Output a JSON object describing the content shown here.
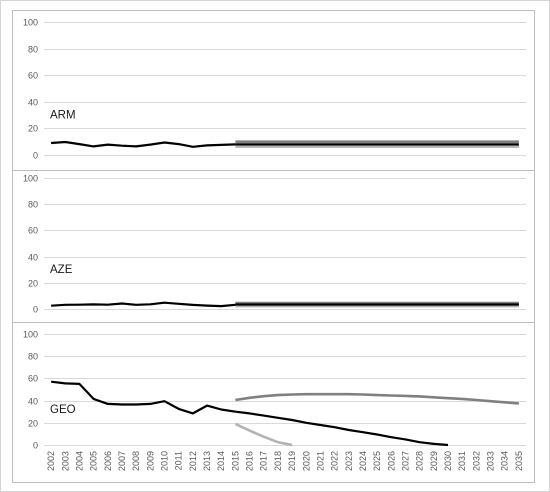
{
  "chart_data": {
    "type": "line",
    "x": [
      2002,
      2003,
      2004,
      2005,
      2006,
      2007,
      2008,
      2009,
      2010,
      2011,
      2012,
      2013,
      2014,
      2015,
      2016,
      2017,
      2018,
      2019,
      2020,
      2021,
      2022,
      2023,
      2024,
      2025,
      2026,
      2027,
      2028,
      2029,
      2030,
      2031,
      2032,
      2033,
      2034,
      2035
    ],
    "x_tick_labels": [
      "2002",
      "2003",
      "2004",
      "2005",
      "2006",
      "2007",
      "2008",
      "2009",
      "2010",
      "2011",
      "2012",
      "2013",
      "2014",
      "2015",
      "2016",
      "2017",
      "2018",
      "2019",
      "2020",
      "2021",
      "2022",
      "2023",
      "2024",
      "2025",
      "2026",
      "2027",
      "2028",
      "2029",
      "2030",
      "2031",
      "2032",
      "2033",
      "2034",
      "2035"
    ],
    "ylim": [
      0,
      100
    ],
    "y_ticks": [
      0,
      20,
      40,
      60,
      80,
      100
    ],
    "grid": true,
    "colors": {
      "history": "#000000",
      "baseline": "#000000",
      "upper": "#808080",
      "lower": "#b3b3b3",
      "grid": "#d9d9d9",
      "frame": "#bfbfbf"
    },
    "panels": [
      {
        "label": "ARM",
        "history": {
          "x": [
            2002,
            2003,
            2004,
            2005,
            2006,
            2007,
            2008,
            2009,
            2010,
            2011,
            2012,
            2013,
            2014,
            2015
          ],
          "values": [
            9.0,
            9.8,
            8.2,
            6.5,
            7.8,
            7.0,
            6.5,
            7.8,
            9.4,
            8.2,
            6.2,
            7.2,
            7.6,
            8.0
          ]
        },
        "projections": [
          {
            "role": "upper",
            "x": [
              2015,
              2035
            ],
            "values": [
              10.0,
              10.0
            ]
          },
          {
            "role": "lower",
            "x": [
              2015,
              2035
            ],
            "values": [
              6.3,
              6.3
            ]
          },
          {
            "role": "baseline",
            "x": [
              2015,
              2035
            ],
            "values": [
              8.0,
              8.0
            ]
          }
        ]
      },
      {
        "label": "AZE",
        "history": {
          "x": [
            2002,
            2003,
            2004,
            2005,
            2006,
            2007,
            2008,
            2009,
            2010,
            2011,
            2012,
            2013,
            2014,
            2015
          ],
          "values": [
            2.5,
            3.2,
            3.3,
            3.5,
            3.3,
            4.2,
            3.2,
            3.6,
            4.8,
            4.0,
            3.1,
            2.6,
            2.2,
            3.2
          ]
        },
        "projections": [
          {
            "role": "upper",
            "x": [
              2015,
              2035
            ],
            "values": [
              4.6,
              4.6
            ]
          },
          {
            "role": "lower",
            "x": [
              2015,
              2035
            ],
            "values": [
              2.2,
              2.2
            ]
          },
          {
            "role": "baseline",
            "x": [
              2015,
              2035
            ],
            "values": [
              3.4,
              3.4
            ]
          }
        ]
      },
      {
        "label": "GEO",
        "history": {
          "x": [
            2002,
            2003,
            2004,
            2005,
            2006,
            2007,
            2008,
            2009,
            2010,
            2011,
            2012,
            2013,
            2014,
            2015
          ],
          "values": [
            57.0,
            55.5,
            55.0,
            41.5,
            37.0,
            36.5,
            36.5,
            37.0,
            39.5,
            32.5,
            28.5,
            35.5,
            32.0,
            30.0
          ]
        },
        "projections": [
          {
            "role": "upper",
            "x": [
              2015,
              2016,
              2017,
              2018,
              2019,
              2020,
              2021,
              2022,
              2023,
              2024,
              2025,
              2026,
              2027,
              2028,
              2029,
              2030,
              2031,
              2032,
              2033,
              2034,
              2035
            ],
            "values": [
              40.5,
              42.5,
              44.0,
              45.0,
              45.5,
              45.8,
              45.8,
              45.8,
              45.8,
              45.5,
              45.0,
              44.6,
              44.2,
              43.8,
              43.0,
              42.2,
              41.5,
              40.5,
              39.5,
              38.5,
              37.5
            ]
          },
          {
            "role": "lower",
            "x": [
              2015,
              2016,
              2017,
              2018,
              2019
            ],
            "values": [
              19.0,
              13.0,
              7.5,
              2.5,
              0.0
            ]
          },
          {
            "role": "baseline",
            "x": [
              2015,
              2016,
              2017,
              2018,
              2019,
              2020,
              2021,
              2022,
              2023,
              2024,
              2025,
              2026,
              2027,
              2028,
              2029,
              2030
            ],
            "values": [
              30.0,
              28.5,
              26.5,
              24.5,
              22.5,
              20.0,
              18.0,
              16.0,
              13.5,
              11.5,
              9.5,
              7.0,
              5.0,
              2.5,
              1.0,
              0.0
            ]
          }
        ]
      }
    ]
  }
}
